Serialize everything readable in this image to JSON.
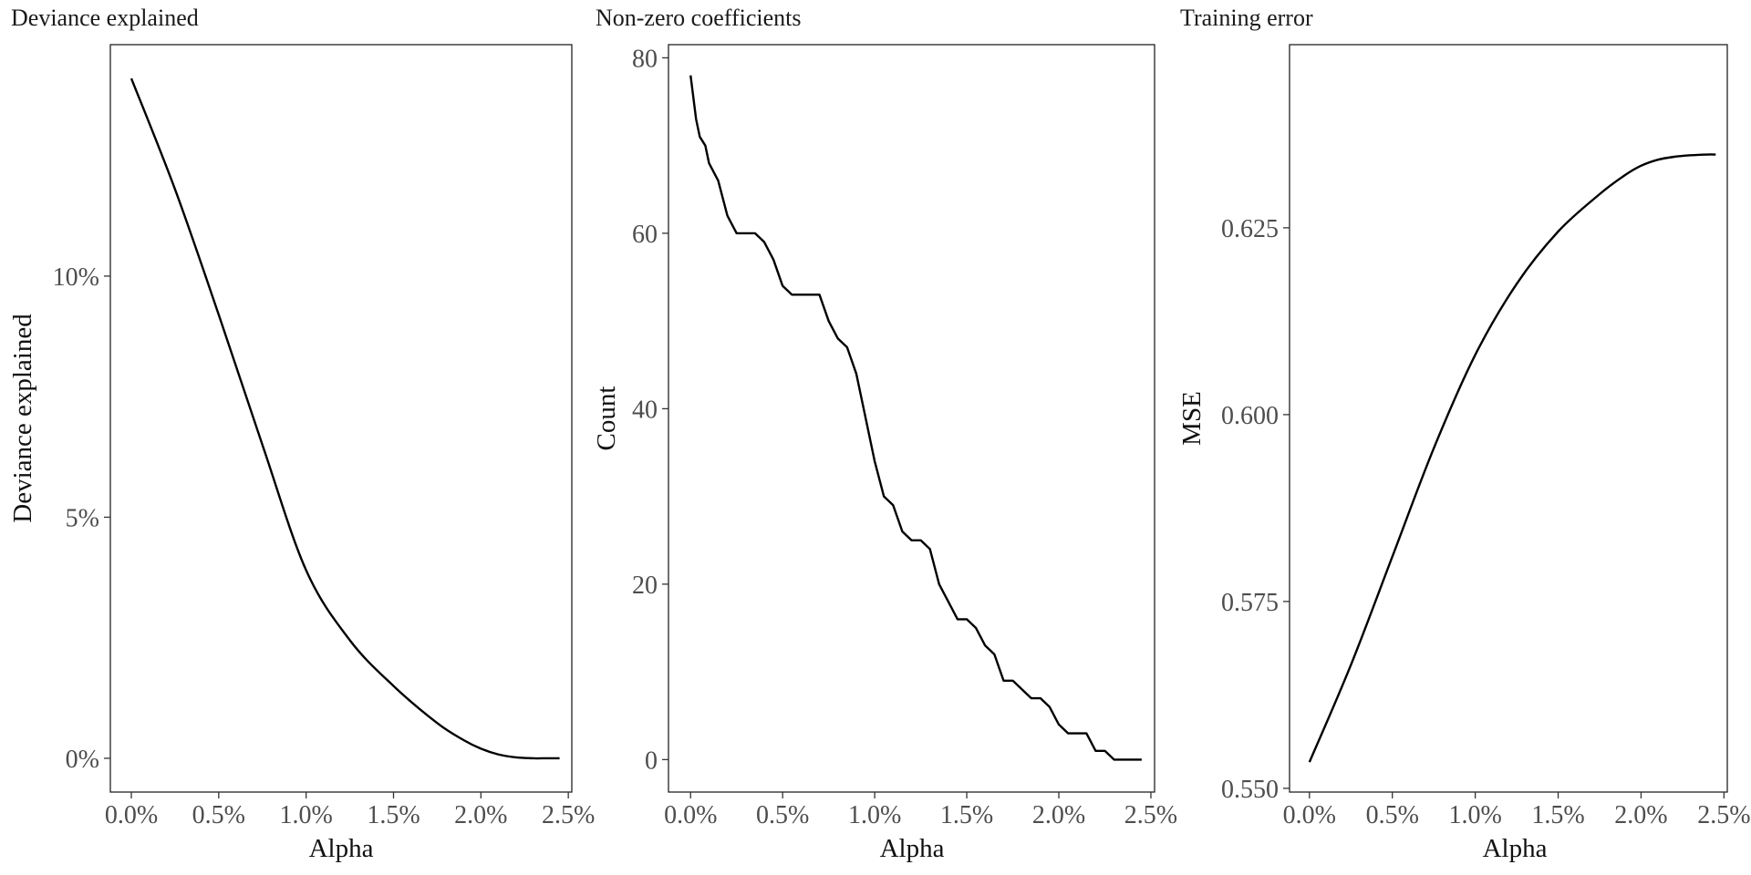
{
  "chart_data": [
    {
      "type": "line",
      "title": "Deviance explained",
      "xlabel": "Alpha",
      "ylabel": "Deviance explained",
      "xlim": [
        -0.0012,
        0.0252
      ],
      "ylim": [
        -0.007,
        0.148
      ],
      "x_ticks": [
        0,
        0.005,
        0.01,
        0.015,
        0.02,
        0.025
      ],
      "x_tick_labels": [
        "0.0%",
        "0.5%",
        "1.0%",
        "1.5%",
        "2.0%",
        "2.5%"
      ],
      "y_ticks": [
        0,
        0.05,
        0.1
      ],
      "y_tick_labels": [
        "0%",
        "5%",
        "10%"
      ],
      "grid": false,
      "series": [
        {
          "x": [
            0,
            0.0025,
            0.005,
            0.0075,
            0.01,
            0.0125,
            0.015,
            0.0175,
            0.019,
            0.02,
            0.021,
            0.022,
            0.023,
            0.0235,
            0.0245
          ],
          "y": [
            0.141,
            0.118,
            0.092,
            0.065,
            0.039,
            0.0245,
            0.015,
            0.0073,
            0.0038,
            0.002,
            0.0008,
            0.0002,
            0,
            0,
            0
          ]
        }
      ]
    },
    {
      "type": "line",
      "title": "Non-zero coefficients",
      "xlabel": "Alpha",
      "ylabel": "Count",
      "xlim": [
        -0.0012,
        0.0252
      ],
      "ylim": [
        -3.7,
        81.5
      ],
      "x_ticks": [
        0,
        0.005,
        0.01,
        0.015,
        0.02,
        0.025
      ],
      "x_tick_labels": [
        "0.0%",
        "0.5%",
        "1.0%",
        "1.5%",
        "2.0%",
        "2.5%"
      ],
      "y_ticks": [
        0,
        20,
        40,
        60,
        80
      ],
      "y_tick_labels": [
        "0",
        "20",
        "40",
        "60",
        "80"
      ],
      "grid": false,
      "series": [
        {
          "x": [
            0,
            0.0003,
            0.0005,
            0.0008,
            0.001,
            0.0015,
            0.002,
            0.0025,
            0.003,
            0.0035,
            0.004,
            0.0045,
            0.005,
            0.0055,
            0.006,
            0.0065,
            0.007,
            0.0075,
            0.008,
            0.0085,
            0.009,
            0.0095,
            0.01,
            0.0105,
            0.011,
            0.0115,
            0.012,
            0.0125,
            0.013,
            0.0135,
            0.014,
            0.0145,
            0.015,
            0.0155,
            0.016,
            0.0165,
            0.017,
            0.0175,
            0.018,
            0.0185,
            0.019,
            0.0195,
            0.02,
            0.0205,
            0.021,
            0.0215,
            0.022,
            0.0225,
            0.023,
            0.0235,
            0.024,
            0.0245
          ],
          "y": [
            78,
            73,
            71,
            70,
            68,
            66,
            62,
            60,
            60,
            60,
            59,
            57,
            54,
            53,
            53,
            53,
            53,
            50,
            48,
            47,
            44,
            39,
            34,
            30,
            29,
            26,
            25,
            25,
            24,
            20,
            18,
            16,
            16,
            15,
            13,
            12,
            9,
            9,
            8,
            7,
            7,
            6,
            4,
            3,
            3,
            3,
            1,
            1,
            0,
            0,
            0,
            0
          ]
        }
      ]
    },
    {
      "type": "line",
      "title": "Training error",
      "xlabel": "Alpha",
      "ylabel": "MSE",
      "xlim": [
        -0.0012,
        0.0252
      ],
      "ylim": [
        0.5495,
        0.6495
      ],
      "x_ticks": [
        0,
        0.005,
        0.01,
        0.015,
        0.02,
        0.025
      ],
      "x_tick_labels": [
        "0.0%",
        "0.5%",
        "1.0%",
        "1.5%",
        "2.0%",
        "2.5%"
      ],
      "y_ticks": [
        0.55,
        0.575,
        0.6,
        0.625
      ],
      "y_tick_labels": [
        "0.550",
        "0.575",
        "0.600",
        "0.625"
      ],
      "grid": false,
      "series": [
        {
          "x": [
            0,
            0.0025,
            0.005,
            0.0075,
            0.01,
            0.0125,
            0.015,
            0.0175,
            0.019,
            0.02,
            0.021,
            0.022,
            0.023,
            0.024,
            0.0245
          ],
          "y": [
            0.5535,
            0.5665,
            0.581,
            0.5955,
            0.608,
            0.6175,
            0.6245,
            0.6295,
            0.632,
            0.6333,
            0.6341,
            0.6345,
            0.6347,
            0.6348,
            0.6348
          ]
        }
      ]
    }
  ]
}
